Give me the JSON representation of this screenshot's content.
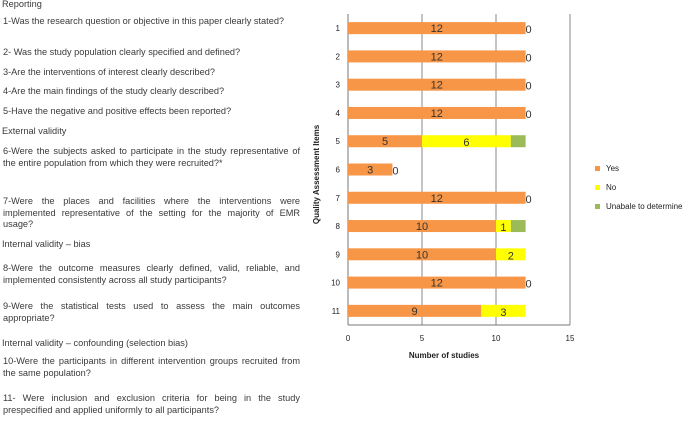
{
  "questions": {
    "reporting_heading": "Reporting",
    "q1": "1-Was the research question or objective in this paper clearly stated?",
    "q2": "2- Was the study population clearly specified and defined?",
    "q3": "3-Are the interventions of interest clearly described?",
    "q4": "4-Are the main findings of the study clearly described?",
    "q5": "5-Have the negative and positive effects been reported?",
    "external_heading": "External validity",
    "q6": "6-Were the subjects asked to participate in the study representative of the entire population from which they were recruited?*",
    "q7": "7-Were the places and facilities where the interventions were implemented representative of the setting for the majority of EMR usage?",
    "bias_heading": "Internal validity – bias",
    "q8": "8-Were the outcome measures clearly defined, valid, reliable, and implemented consistently across all study participants?",
    "q9": "9-Were the statistical tests used to assess the main outcomes appropriate?",
    "confounding_heading": "Internal validity – confounding (selection bias)",
    "q10": "10-Were the participants in different intervention groups recruited from the same population?",
    "q11": "11- Were inclusion and exclusion criteria for being in the study prespecified and applied uniformly to all participants?"
  },
  "chart_data": {
    "type": "bar",
    "orientation": "horizontal",
    "stacked": true,
    "categories": [
      "1",
      "2",
      "3",
      "4",
      "5",
      "6",
      "7",
      "8",
      "9",
      "10",
      "11"
    ],
    "series": [
      {
        "name": "Yes",
        "color": "#F79646",
        "values": [
          12,
          12,
          12,
          12,
          5,
          3,
          12,
          10,
          10,
          12,
          9
        ]
      },
      {
        "name": "No",
        "color": "#FFFF00",
        "values": [
          0,
          0,
          0,
          0,
          6,
          0,
          0,
          1,
          2,
          0,
          3
        ]
      },
      {
        "name": "Unabale to determine",
        "color": "#9BBB59",
        "values": [
          0,
          0,
          0,
          0,
          1,
          0,
          0,
          1,
          0,
          0,
          0
        ]
      }
    ],
    "bar_labels": {
      "yes": [
        "12",
        "12",
        "12",
        "12",
        "5",
        "3",
        "12",
        "10",
        "10",
        "12",
        "9"
      ],
      "no": [
        "0",
        "0",
        "0",
        "0",
        "6",
        "0",
        "0",
        "1",
        "2",
        "0",
        "3"
      ]
    },
    "xlabel": "Number of studies",
    "ylabel": "Quality Assessment Items",
    "xlim": [
      0,
      15
    ],
    "x_ticks": [
      "0",
      "5",
      "10",
      "15"
    ],
    "grid": true,
    "legend_position": "right"
  }
}
